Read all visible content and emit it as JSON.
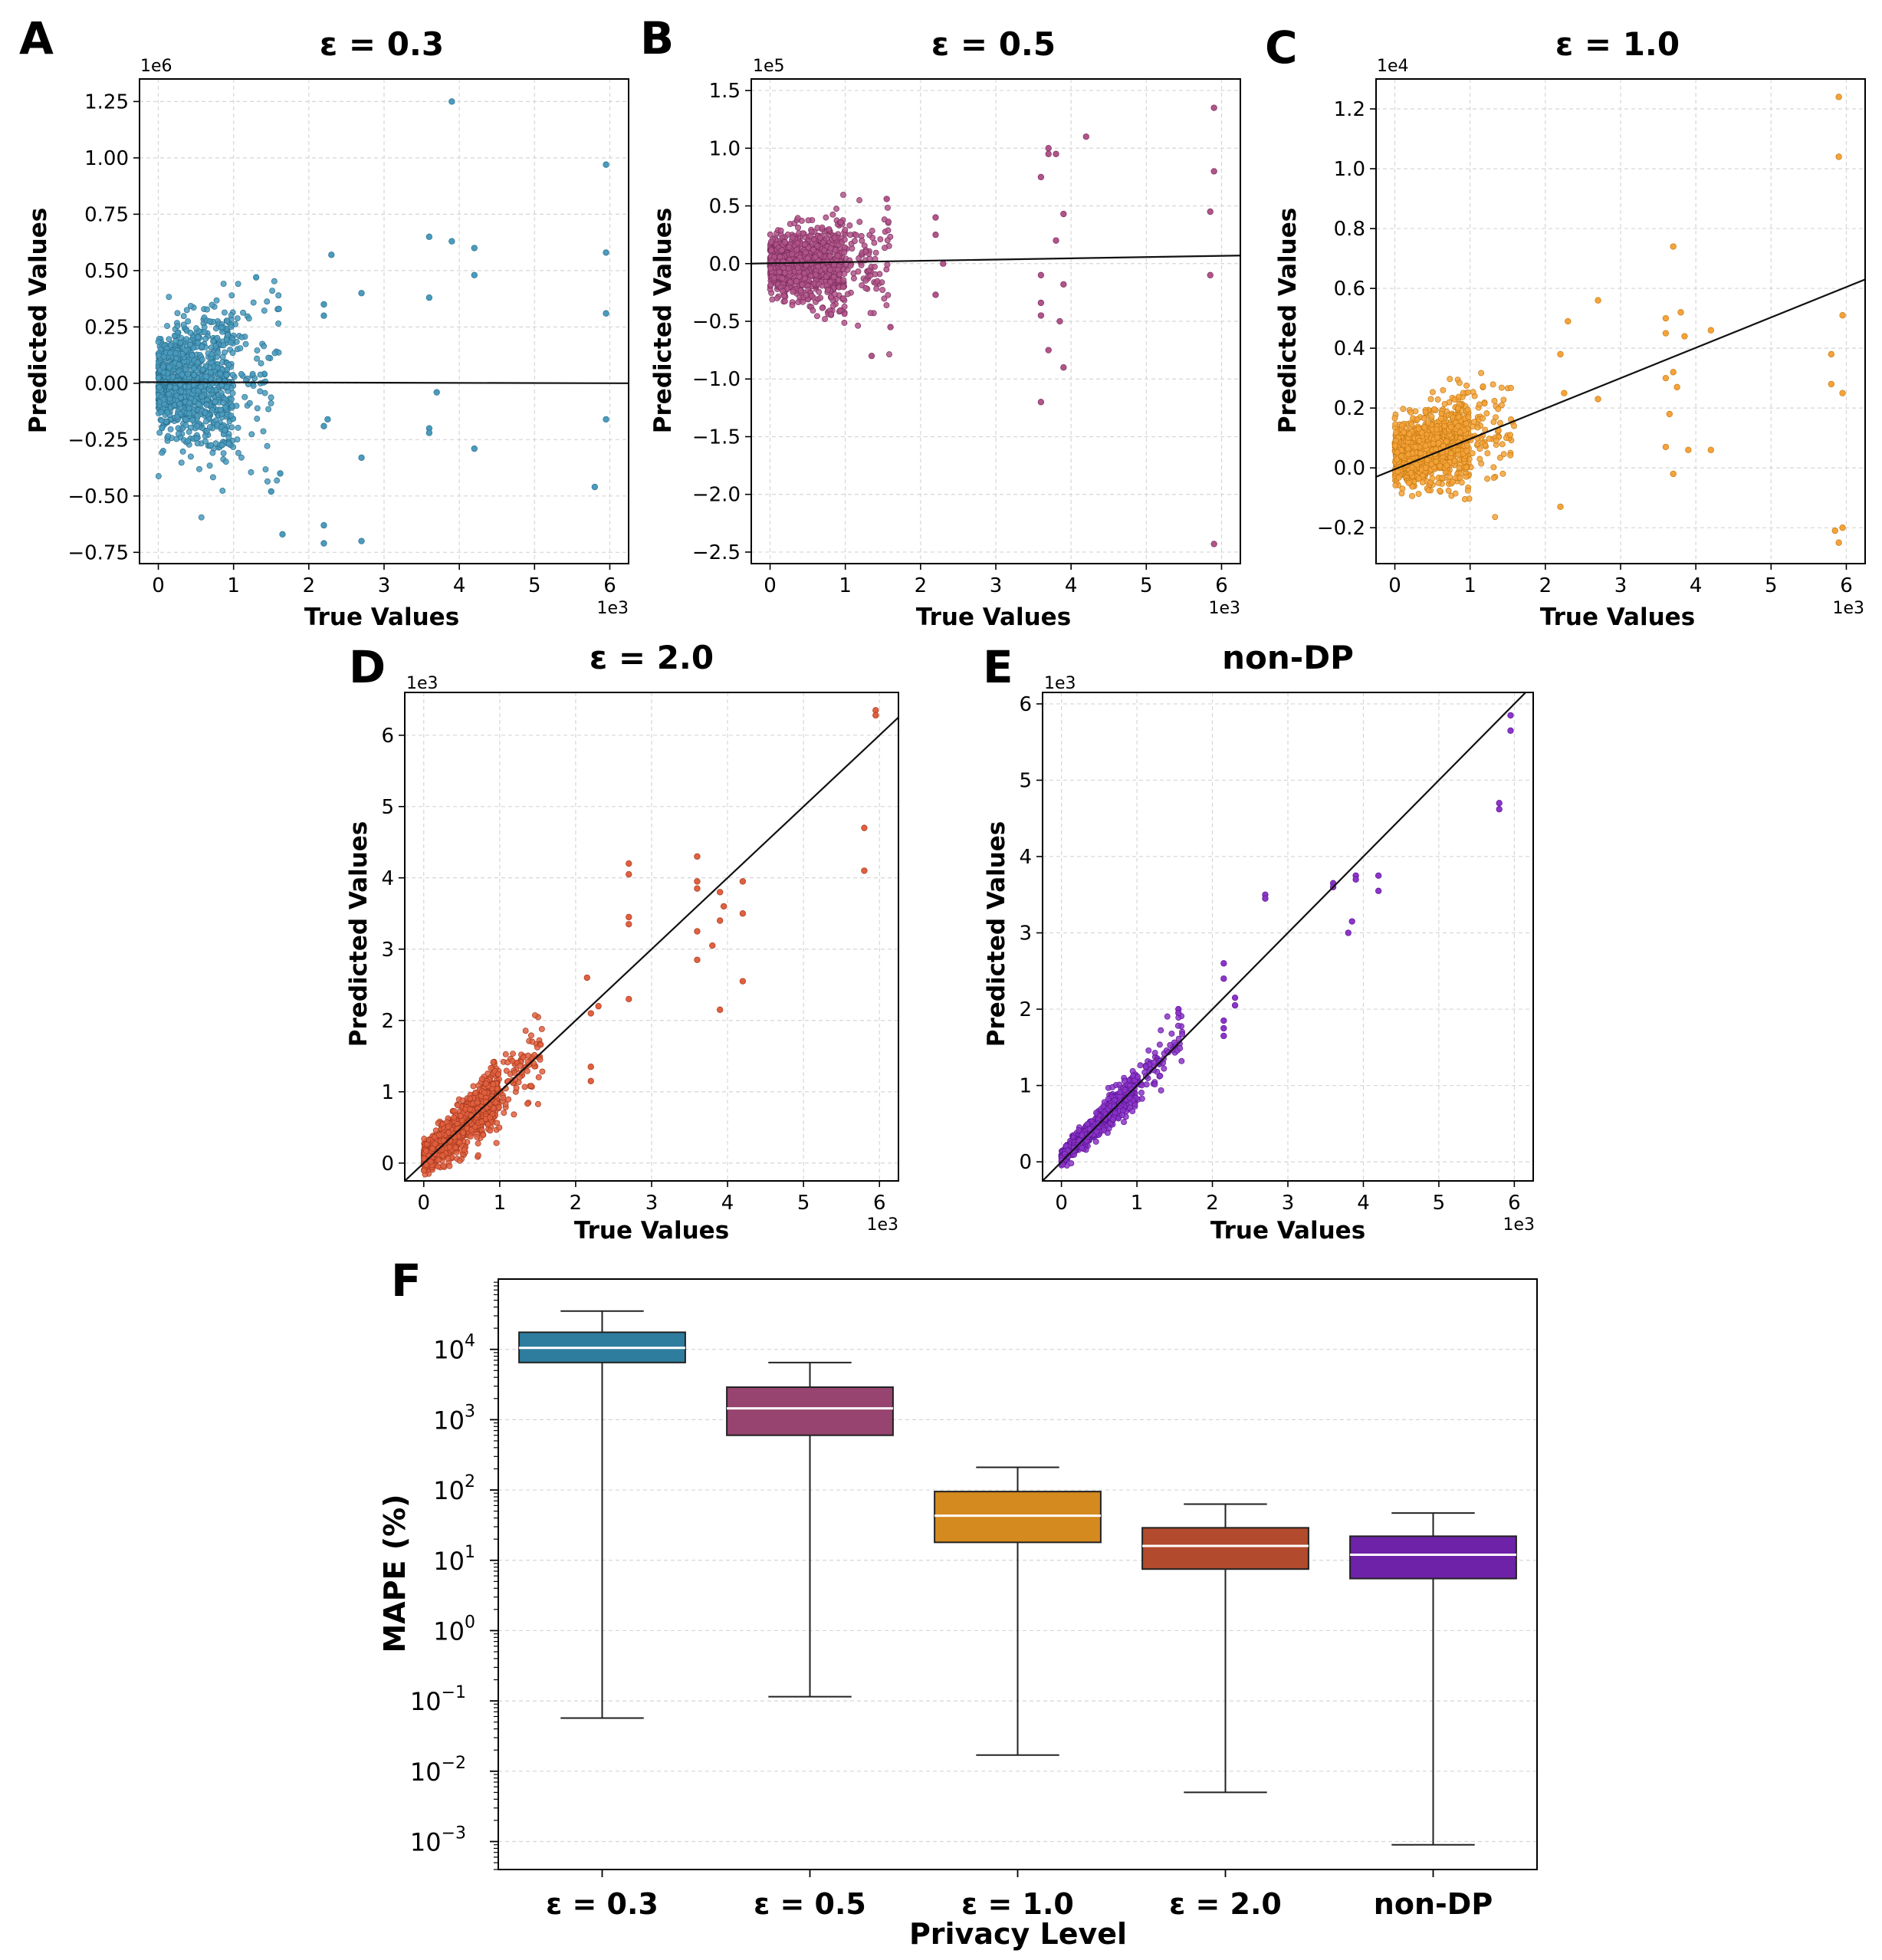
{
  "chart_data": [
    {
      "type": "scatter",
      "panel": "A",
      "title": "ε = 0.3",
      "xlabel": "True Values",
      "ylabel": "Predicted Values",
      "x_multiplier": "1e3",
      "y_multiplier": "1e6",
      "xlim": [
        -0.25,
        6.25
      ],
      "ylim": [
        -0.8,
        1.35
      ],
      "xticks": [
        0,
        1,
        2,
        3,
        4,
        5,
        6
      ],
      "yticks": [
        -0.75,
        -0.5,
        -0.25,
        0.0,
        0.25,
        0.5,
        0.75,
        1.0,
        1.25
      ],
      "ytick_labels": [
        "−0.75",
        "−0.50",
        "−0.25",
        "0.00",
        "0.25",
        "0.50",
        "0.75",
        "1.00",
        "1.25"
      ],
      "grid": true,
      "color": "#4a9bbe",
      "edge_color": "#2a6f8c",
      "cluster": {
        "x_range": [
          0,
          1.6
        ],
        "y_spread": 0.28,
        "n": 1100
      },
      "outliers": [
        [
          2.2,
          0.35
        ],
        [
          2.2,
          0.3
        ],
        [
          2.3,
          0.57
        ],
        [
          2.7,
          0.4
        ],
        [
          2.25,
          -0.16
        ],
        [
          2.2,
          -0.19
        ],
        [
          2.2,
          -0.63
        ],
        [
          2.2,
          -0.71
        ],
        [
          2.7,
          -0.33
        ],
        [
          2.7,
          -0.7
        ],
        [
          3.6,
          0.65
        ],
        [
          3.6,
          0.38
        ],
        [
          3.6,
          -0.2
        ],
        [
          3.6,
          -0.22
        ],
        [
          3.9,
          1.25
        ],
        [
          3.9,
          0.63
        ],
        [
          4.2,
          0.6
        ],
        [
          4.2,
          0.48
        ],
        [
          4.2,
          -0.29
        ],
        [
          3.7,
          -0.04
        ],
        [
          5.8,
          -0.46
        ],
        [
          5.95,
          0.97
        ],
        [
          5.95,
          0.58
        ],
        [
          5.95,
          0.31
        ],
        [
          5.95,
          -0.16
        ],
        [
          1.65,
          -0.67
        ],
        [
          1.5,
          -0.48
        ],
        [
          1.3,
          0.47
        ],
        [
          1.6,
          0.33
        ],
        [
          1.62,
          -0.4
        ]
      ],
      "fit_line": [
        [
          -0.25,
          0.005
        ],
        [
          6.25,
          0.0
        ]
      ]
    },
    {
      "type": "scatter",
      "panel": "B",
      "title": "ε = 0.5",
      "xlabel": "True Values",
      "ylabel": "Predicted Values",
      "x_multiplier": "1e3",
      "y_multiplier": "1e5",
      "xlim": [
        -0.25,
        6.25
      ],
      "ylim": [
        -2.6,
        1.6
      ],
      "xticks": [
        0,
        1,
        2,
        3,
        4,
        5,
        6
      ],
      "yticks": [
        -2.5,
        -2.0,
        -1.5,
        -1.0,
        -0.5,
        0.0,
        0.5,
        1.0,
        1.5
      ],
      "ytick_labels": [
        "−2.5",
        "−2.0",
        "−1.5",
        "−1.0",
        "−0.5",
        "0.0",
        "0.5",
        "1.0",
        "1.5"
      ],
      "grid": true,
      "color": "#b0558a",
      "edge_color": "#7d2d5d",
      "cluster": {
        "x_range": [
          0,
          1.6
        ],
        "y_spread": 0.3,
        "n": 1100
      },
      "outliers": [
        [
          2.2,
          0.4
        ],
        [
          2.2,
          0.25
        ],
        [
          2.2,
          -0.27
        ],
        [
          2.3,
          0.0
        ],
        [
          3.6,
          0.75
        ],
        [
          3.7,
          0.95
        ],
        [
          3.7,
          1.0
        ],
        [
          3.8,
          0.95
        ],
        [
          3.8,
          0.2
        ],
        [
          3.9,
          0.43
        ],
        [
          3.9,
          -0.18
        ],
        [
          3.6,
          -0.1
        ],
        [
          3.6,
          -0.34
        ],
        [
          3.6,
          -0.45
        ],
        [
          3.7,
          -0.75
        ],
        [
          3.85,
          -0.5
        ],
        [
          3.9,
          -0.9
        ],
        [
          3.6,
          -1.2
        ],
        [
          4.2,
          1.1
        ],
        [
          5.85,
          0.45
        ],
        [
          5.9,
          1.35
        ],
        [
          5.9,
          0.8
        ],
        [
          5.85,
          -0.1
        ],
        [
          5.9,
          -2.43
        ],
        [
          1.35,
          -0.8
        ],
        [
          1.55,
          0.56
        ],
        [
          1.6,
          -0.55
        ]
      ],
      "fit_line": [
        [
          -0.25,
          0.0
        ],
        [
          6.25,
          0.07
        ]
      ]
    },
    {
      "type": "scatter",
      "panel": "C",
      "title": "ε = 1.0",
      "xlabel": "True Values",
      "ylabel": "Predicted Values",
      "x_multiplier": "1e3",
      "y_multiplier": "1e4",
      "xlim": [
        -0.25,
        6.25
      ],
      "ylim": [
        -0.32,
        1.3
      ],
      "xticks": [
        0,
        1,
        2,
        3,
        4,
        5,
        6
      ],
      "yticks": [
        -0.2,
        0.0,
        0.2,
        0.4,
        0.6,
        0.8,
        1.0,
        1.2
      ],
      "ytick_labels": [
        "−0.2",
        "0.0",
        "0.2",
        "0.4",
        "0.6",
        "0.8",
        "1.0",
        "1.2"
      ],
      "grid": true,
      "color": "#f5a33a",
      "edge_color": "#c77a10",
      "cluster": {
        "x_range": [
          0,
          1.6
        ],
        "y_spread": 0.12,
        "n": 1100
      },
      "outliers": [
        [
          2.2,
          0.38
        ],
        [
          2.25,
          0.25
        ],
        [
          2.3,
          0.49
        ],
        [
          2.2,
          -0.13
        ],
        [
          2.7,
          0.56
        ],
        [
          2.7,
          0.23
        ],
        [
          3.6,
          0.5
        ],
        [
          3.6,
          0.45
        ],
        [
          3.6,
          0.3
        ],
        [
          3.65,
          0.18
        ],
        [
          3.6,
          0.07
        ],
        [
          3.7,
          0.74
        ],
        [
          3.7,
          0.32
        ],
        [
          3.75,
          0.27
        ],
        [
          3.8,
          0.52
        ],
        [
          3.85,
          0.44
        ],
        [
          3.7,
          -0.02
        ],
        [
          3.9,
          0.06
        ],
        [
          4.2,
          0.46
        ],
        [
          4.2,
          0.06
        ],
        [
          5.8,
          0.38
        ],
        [
          5.8,
          0.28
        ],
        [
          5.9,
          1.24
        ],
        [
          5.9,
          1.04
        ],
        [
          5.95,
          0.51
        ],
        [
          5.95,
          0.25
        ],
        [
          5.85,
          -0.21
        ],
        [
          5.9,
          -0.25
        ],
        [
          5.95,
          -0.2
        ]
      ],
      "fit_line": [
        [
          -0.25,
          -0.03
        ],
        [
          6.25,
          0.63
        ]
      ]
    },
    {
      "type": "scatter",
      "panel": "D",
      "title": "ε = 2.0",
      "xlabel": "True Values",
      "ylabel": "Predicted Values",
      "x_multiplier": "1e3",
      "y_multiplier": "1e3",
      "xlim": [
        -0.25,
        6.25
      ],
      "ylim": [
        -0.25,
        6.6
      ],
      "xticks": [
        0,
        1,
        2,
        3,
        4,
        5,
        6
      ],
      "yticks": [
        0,
        1,
        2,
        3,
        4,
        5,
        6
      ],
      "ytick_labels": [
        "0",
        "1",
        "2",
        "3",
        "4",
        "5",
        "6"
      ],
      "grid": true,
      "color": "#e0603f",
      "edge_color": "#a8381c",
      "cluster": {
        "x_range": [
          0,
          1.6
        ],
        "y_spread": 0.25,
        "n": 1100,
        "follow_x": true
      },
      "outliers": [
        [
          2.2,
          1.35
        ],
        [
          2.2,
          1.15
        ],
        [
          2.2,
          2.1
        ],
        [
          2.3,
          2.2
        ],
        [
          2.15,
          2.6
        ],
        [
          2.7,
          4.2
        ],
        [
          2.7,
          4.05
        ],
        [
          2.7,
          3.45
        ],
        [
          2.7,
          3.35
        ],
        [
          2.7,
          2.3
        ],
        [
          3.6,
          4.3
        ],
        [
          3.6,
          3.95
        ],
        [
          3.6,
          3.85
        ],
        [
          3.6,
          3.25
        ],
        [
          3.6,
          2.85
        ],
        [
          3.8,
          3.05
        ],
        [
          3.9,
          3.8
        ],
        [
          3.9,
          3.4
        ],
        [
          3.9,
          2.15
        ],
        [
          3.95,
          3.6
        ],
        [
          4.2,
          3.95
        ],
        [
          4.2,
          3.5
        ],
        [
          4.2,
          2.55
        ],
        [
          5.8,
          4.7
        ],
        [
          5.8,
          4.1
        ],
        [
          5.95,
          6.35
        ],
        [
          5.95,
          6.28
        ]
      ],
      "fit_line": [
        [
          -0.25,
          -0.25
        ],
        [
          6.25,
          6.25
        ]
      ]
    },
    {
      "type": "scatter",
      "panel": "E",
      "title": "non-DP",
      "xlabel": "True Values",
      "ylabel": "Predicted Values",
      "x_multiplier": "1e3",
      "y_multiplier": "1e3",
      "xlim": [
        -0.25,
        6.25
      ],
      "ylim": [
        -0.25,
        6.15
      ],
      "xticks": [
        0,
        1,
        2,
        3,
        4,
        5,
        6
      ],
      "yticks": [
        0,
        1,
        2,
        3,
        4,
        5,
        6
      ],
      "ytick_labels": [
        "0",
        "1",
        "2",
        "3",
        "4",
        "5",
        "6"
      ],
      "grid": true,
      "color": "#8b35c9",
      "edge_color": "#5c1494",
      "cluster": {
        "x_range": [
          0,
          1.6
        ],
        "y_spread": 0.12,
        "n": 900,
        "follow_x": true
      },
      "outliers": [
        [
          2.15,
          2.6
        ],
        [
          2.15,
          2.4
        ],
        [
          2.15,
          1.85
        ],
        [
          2.15,
          1.75
        ],
        [
          2.15,
          1.65
        ],
        [
          2.3,
          2.15
        ],
        [
          2.3,
          2.05
        ],
        [
          2.7,
          3.5
        ],
        [
          2.7,
          3.45
        ],
        [
          3.6,
          3.65
        ],
        [
          3.6,
          3.6
        ],
        [
          3.8,
          3.0
        ],
        [
          3.85,
          3.15
        ],
        [
          3.9,
          3.75
        ],
        [
          3.9,
          3.7
        ],
        [
          4.2,
          3.75
        ],
        [
          4.2,
          3.55
        ],
        [
          5.8,
          4.7
        ],
        [
          5.8,
          4.62
        ],
        [
          5.95,
          5.85
        ],
        [
          5.95,
          5.65
        ],
        [
          1.55,
          2.0
        ],
        [
          1.55,
          1.95
        ]
      ],
      "fit_line": [
        [
          -0.25,
          -0.25
        ],
        [
          6.25,
          6.25
        ]
      ]
    },
    {
      "type": "box",
      "panel": "F",
      "xlabel": "Privacy Level",
      "ylabel": "MAPE (%)",
      "y_scale": "log",
      "ylim": [
        0.0004,
        100000
      ],
      "ytick_exponents": [
        -3,
        -2,
        -1,
        0,
        1,
        2,
        3,
        4
      ],
      "ytick_base": "10",
      "grid": true,
      "categories": [
        "ε = 0.3",
        "ε = 0.5",
        "ε = 1.0",
        "ε = 2.0",
        "non-DP"
      ],
      "boxes": [
        {
          "whisker_low": 0.057,
          "q1": 6500,
          "median": 10500,
          "q3": 17500,
          "whisker_high": 35000,
          "color": "#2e7d9e"
        },
        {
          "whisker_low": 0.115,
          "q1": 600,
          "median": 1450,
          "q3": 2900,
          "whisker_high": 6500,
          "color": "#974470"
        },
        {
          "whisker_low": 0.017,
          "q1": 18,
          "median": 43,
          "q3": 95,
          "whisker_high": 210,
          "color": "#d48a1f"
        },
        {
          "whisker_low": 0.005,
          "q1": 7.5,
          "median": 16,
          "q3": 29,
          "whisker_high": 63,
          "color": "#b24b2d"
        },
        {
          "whisker_low": 0.0009,
          "q1": 5.5,
          "median": 12,
          "q3": 22,
          "whisker_high": 47,
          "color": "#6e22a8"
        }
      ]
    }
  ]
}
